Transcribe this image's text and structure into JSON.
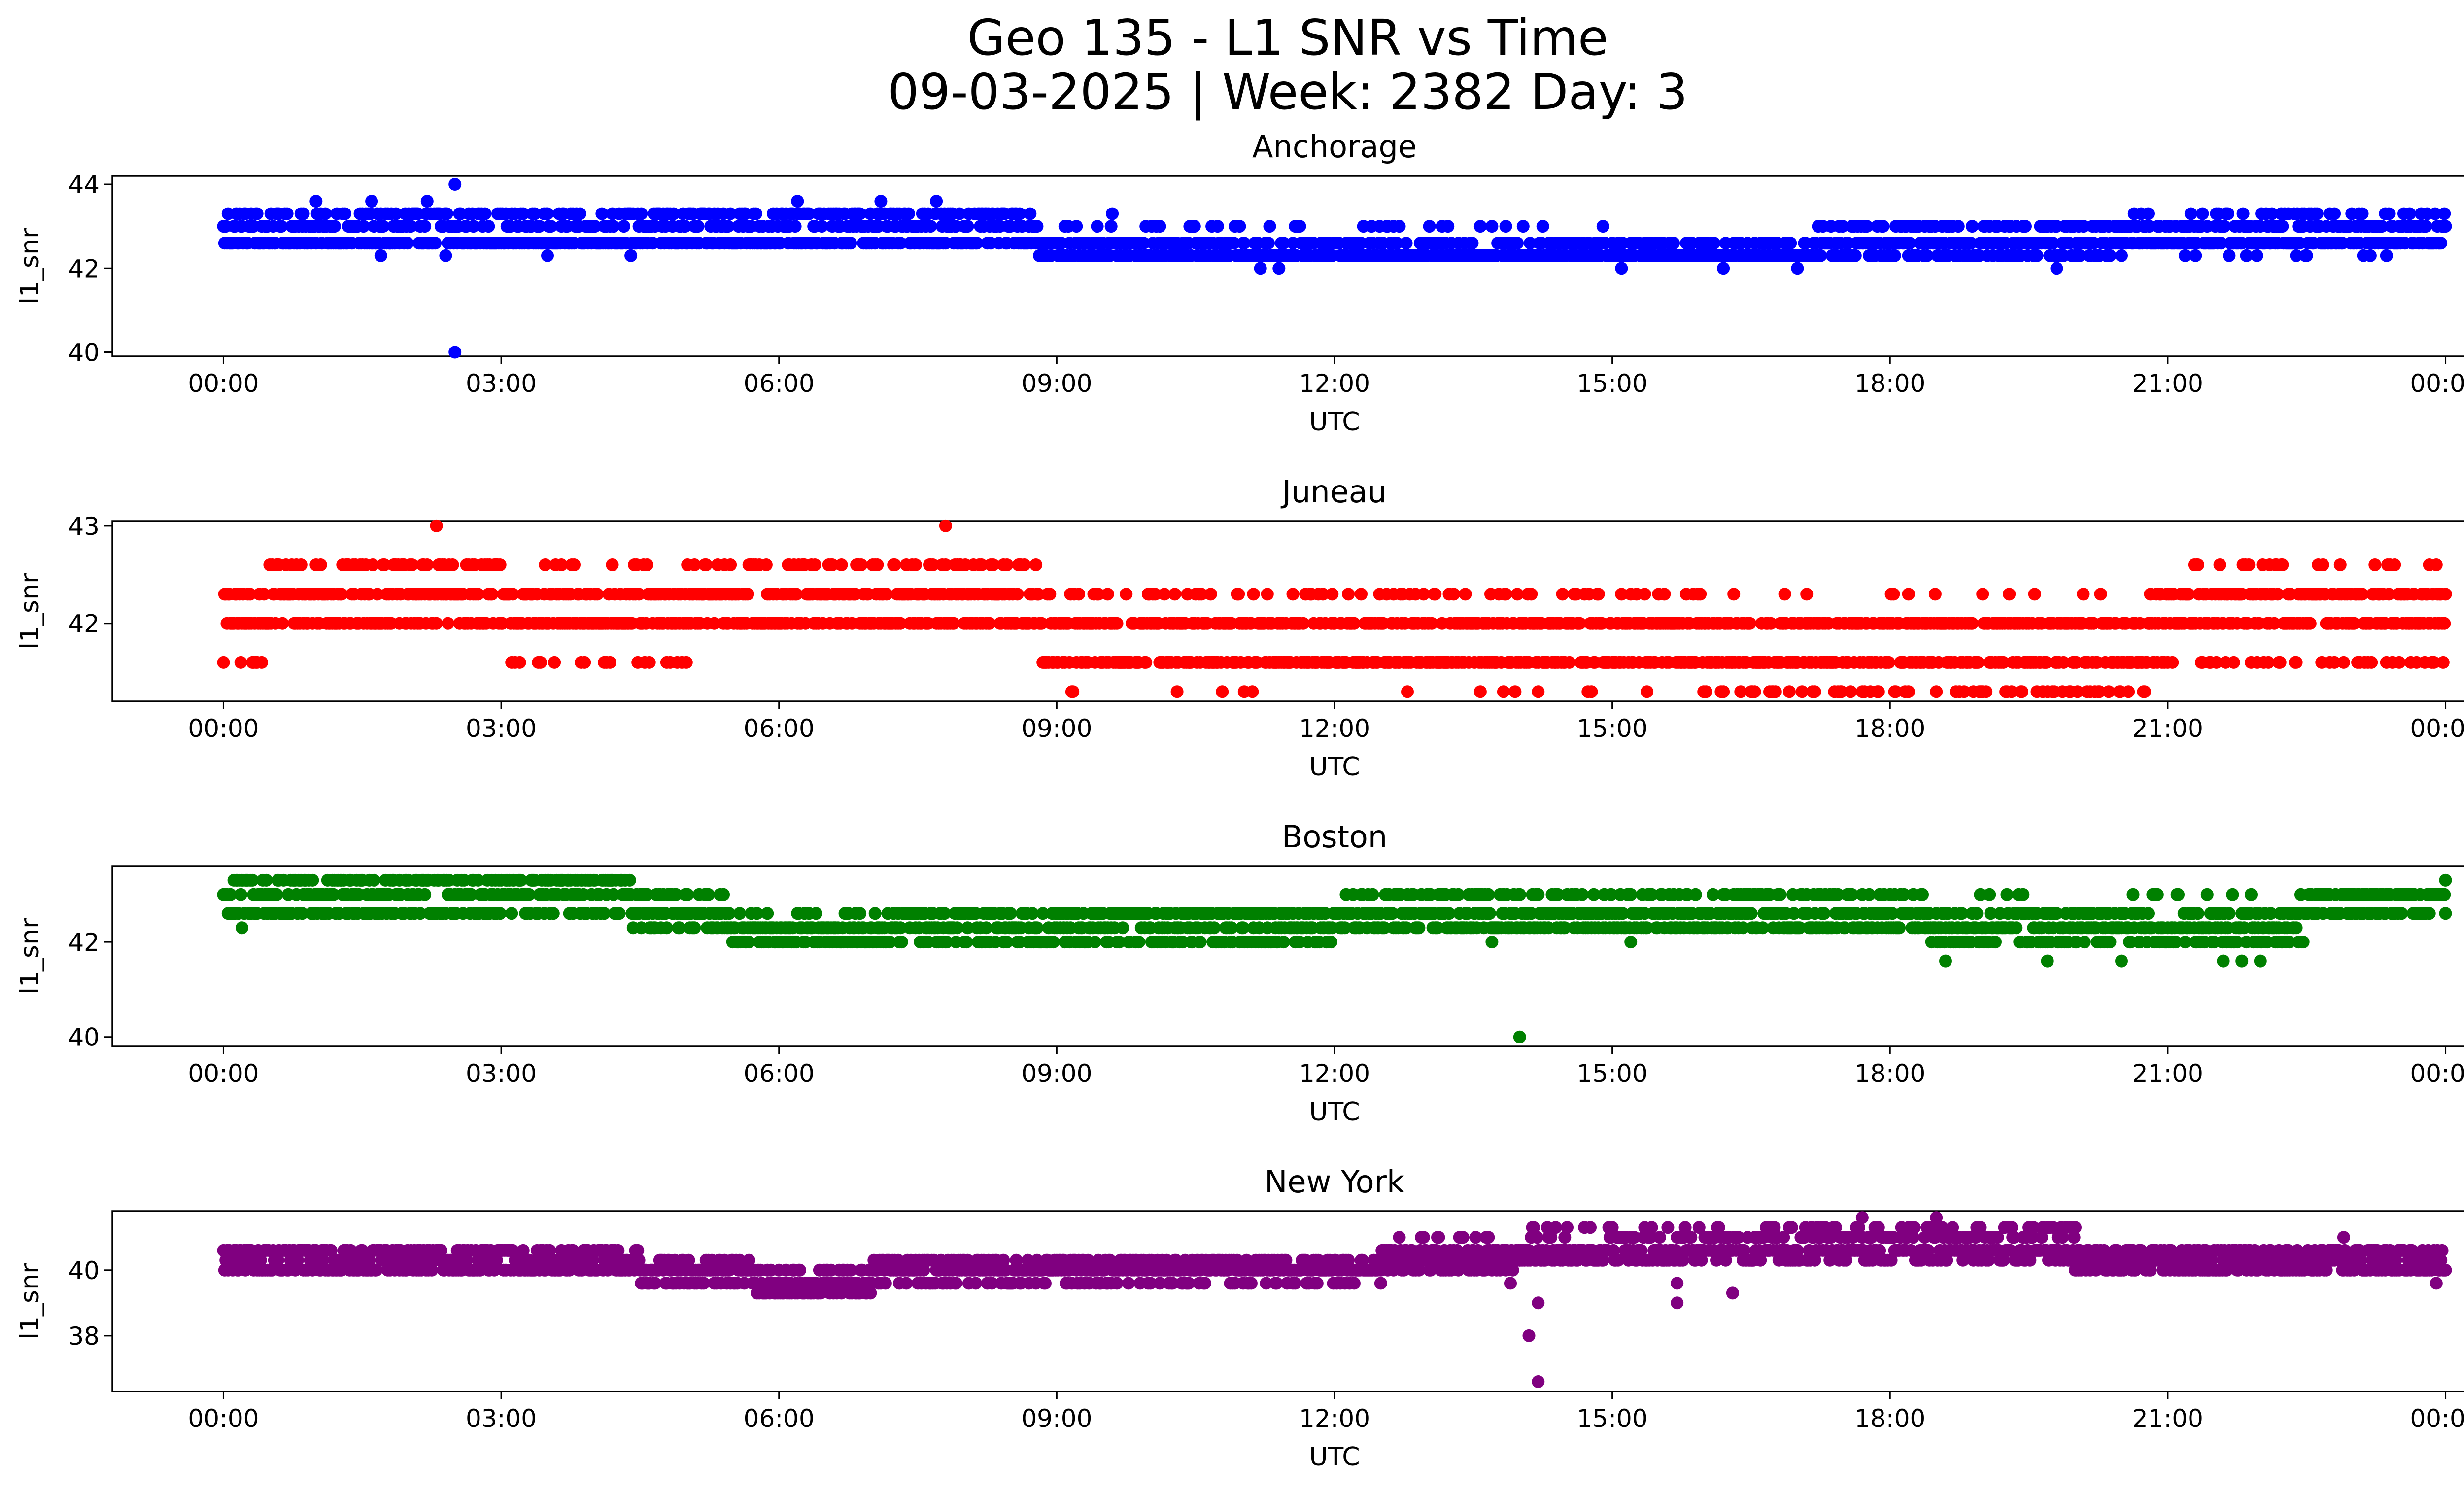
{
  "figure": {
    "title_line1": "Geo 135 - L1 SNR vs Time",
    "title_line2": "09-03-2025 | Week: 2382 Day: 3"
  },
  "chart_data": [
    {
      "type": "scatter",
      "title": "Anchorage",
      "xlabel": "UTC",
      "ylabel": "l1_snr",
      "color": "#0000ff",
      "x_ticks": [
        "00:00",
        "03:00",
        "06:00",
        "09:00",
        "12:00",
        "15:00",
        "18:00",
        "21:00",
        "00:00"
      ],
      "xlim_hours": [
        -1.2,
        25.2
      ],
      "ylim": [
        39.9,
        44.2
      ],
      "y_ticks": [
        40,
        42,
        44
      ],
      "y_tick_labels": [
        "40",
        "42",
        "44"
      ],
      "levels": [
        42.3,
        42.6,
        43.0,
        43.3
      ],
      "outliers": [
        [
          2.5,
          40.0
        ],
        [
          2.5,
          44.0
        ],
        [
          1.7,
          42.3
        ],
        [
          2.4,
          42.3
        ],
        [
          3.5,
          42.3
        ],
        [
          4.4,
          42.3
        ],
        [
          11.2,
          42.0
        ],
        [
          11.4,
          42.0
        ],
        [
          15.1,
          42.0
        ],
        [
          16.2,
          42.0
        ],
        [
          17.0,
          42.0
        ],
        [
          19.8,
          42.0
        ],
        [
          1.0,
          43.6
        ],
        [
          1.6,
          43.6
        ],
        [
          2.2,
          43.6
        ],
        [
          6.2,
          43.6
        ],
        [
          7.1,
          43.6
        ],
        [
          7.7,
          43.6
        ],
        [
          9.6,
          43.3
        ],
        [
          22.3,
          43.3
        ]
      ],
      "segments": [
        {
          "from": 0.0,
          "to": 1.8,
          "level_weights": [
            0.0,
            0.45,
            0.3,
            0.25
          ]
        },
        {
          "from": 1.8,
          "to": 4.5,
          "level_weights": [
            0.0,
            0.45,
            0.3,
            0.25
          ]
        },
        {
          "from": 4.5,
          "to": 8.8,
          "level_weights": [
            0.0,
            0.4,
            0.3,
            0.3
          ]
        },
        {
          "from": 8.8,
          "to": 11.0,
          "level_weights": [
            0.45,
            0.45,
            0.1,
            0.0
          ]
        },
        {
          "from": 11.0,
          "to": 15.0,
          "level_weights": [
            0.6,
            0.3,
            0.1,
            0.0
          ]
        },
        {
          "from": 15.0,
          "to": 17.2,
          "level_weights": [
            0.65,
            0.35,
            0.0,
            0.0
          ]
        },
        {
          "from": 17.2,
          "to": 20.5,
          "level_weights": [
            0.3,
            0.45,
            0.25,
            0.0
          ]
        },
        {
          "from": 20.5,
          "to": 24.0,
          "level_weights": [
            0.05,
            0.45,
            0.35,
            0.15
          ]
        }
      ]
    },
    {
      "type": "scatter",
      "title": "Juneau",
      "xlabel": "UTC",
      "ylabel": "l1_snr",
      "color": "#ff0000",
      "x_ticks": [
        "00:00",
        "03:00",
        "06:00",
        "09:00",
        "12:00",
        "15:00",
        "18:00",
        "21:00",
        "00:00"
      ],
      "xlim_hours": [
        -1.2,
        25.2
      ],
      "ylim": [
        41.2,
        43.05
      ],
      "y_ticks": [
        42,
        43
      ],
      "y_tick_labels": [
        "42",
        "43"
      ],
      "levels": [
        41.3,
        41.6,
        42.0,
        42.3,
        42.6
      ],
      "outliers": [
        [
          2.3,
          43.0
        ],
        [
          7.8,
          43.0
        ],
        [
          0.9,
          42.0
        ],
        [
          7.5,
          42.0
        ],
        [
          5.0,
          41.6
        ],
        [
          3.9,
          41.6
        ],
        [
          14.2,
          41.3
        ],
        [
          10.3,
          41.3
        ],
        [
          17.1,
          42.3
        ],
        [
          18.2,
          42.3
        ],
        [
          19.0,
          42.3
        ],
        [
          22.1,
          42.6
        ]
      ],
      "segments": [
        {
          "from": 0.0,
          "to": 0.5,
          "level_weights": [
            0.0,
            0.25,
            0.4,
            0.35,
            0.0
          ]
        },
        {
          "from": 0.5,
          "to": 3.0,
          "level_weights": [
            0.0,
            0.0,
            0.35,
            0.35,
            0.3
          ]
        },
        {
          "from": 3.0,
          "to": 5.0,
          "level_weights": [
            0.0,
            0.15,
            0.45,
            0.35,
            0.05
          ]
        },
        {
          "from": 5.0,
          "to": 8.8,
          "level_weights": [
            0.0,
            0.0,
            0.4,
            0.4,
            0.2
          ]
        },
        {
          "from": 8.8,
          "to": 16.0,
          "level_weights": [
            0.03,
            0.42,
            0.42,
            0.13,
            0.0
          ]
        },
        {
          "from": 16.0,
          "to": 20.8,
          "level_weights": [
            0.17,
            0.4,
            0.4,
            0.03,
            0.0
          ]
        },
        {
          "from": 20.8,
          "to": 24.0,
          "level_weights": [
            0.0,
            0.15,
            0.4,
            0.35,
            0.1
          ]
        }
      ]
    },
    {
      "type": "scatter",
      "title": "Boston",
      "xlabel": "UTC",
      "ylabel": "l1_snr",
      "color": "#008000",
      "x_ticks": [
        "00:00",
        "03:00",
        "06:00",
        "09:00",
        "12:00",
        "15:00",
        "18:00",
        "21:00",
        "00:00"
      ],
      "xlim_hours": [
        -1.2,
        25.2
      ],
      "ylim": [
        39.8,
        43.6
      ],
      "y_ticks": [
        40,
        42
      ],
      "y_tick_labels": [
        "40",
        "42"
      ],
      "levels": [
        42.0,
        42.3,
        42.6,
        43.0,
        43.3
      ],
      "outliers": [
        [
          14.0,
          40.0
        ],
        [
          0.2,
          42.3
        ],
        [
          18.6,
          41.6
        ],
        [
          19.7,
          41.6
        ],
        [
          20.5,
          41.6
        ],
        [
          21.6,
          41.6
        ],
        [
          21.8,
          41.6
        ],
        [
          22.0,
          41.6
        ],
        [
          24.0,
          43.3
        ],
        [
          13.7,
          42.0
        ],
        [
          15.2,
          42.0
        ]
      ],
      "segments": [
        {
          "from": 0.0,
          "to": 1.4,
          "level_weights": [
            0.0,
            0.0,
            0.35,
            0.35,
            0.3
          ]
        },
        {
          "from": 1.4,
          "to": 4.4,
          "level_weights": [
            0.0,
            0.0,
            0.3,
            0.35,
            0.35
          ]
        },
        {
          "from": 4.4,
          "to": 5.5,
          "level_weights": [
            0.0,
            0.35,
            0.45,
            0.2,
            0.0
          ]
        },
        {
          "from": 5.5,
          "to": 7.3,
          "level_weights": [
            0.4,
            0.45,
            0.15,
            0.0,
            0.0
          ]
        },
        {
          "from": 7.3,
          "to": 12.0,
          "level_weights": [
            0.25,
            0.35,
            0.4,
            0.0,
            0.0
          ]
        },
        {
          "from": 12.0,
          "to": 18.4,
          "level_weights": [
            0.0,
            0.4,
            0.35,
            0.25,
            0.0
          ]
        },
        {
          "from": 18.4,
          "to": 22.5,
          "level_weights": [
            0.25,
            0.35,
            0.35,
            0.05,
            0.0
          ]
        },
        {
          "from": 22.5,
          "to": 24.0,
          "level_weights": [
            0.0,
            0.0,
            0.4,
            0.6,
            0.0
          ]
        }
      ]
    },
    {
      "type": "scatter",
      "title": "New York",
      "xlabel": "UTC",
      "ylabel": "l1_snr",
      "color": "#800080",
      "x_ticks": [
        "00:00",
        "03:00",
        "06:00",
        "09:00",
        "12:00",
        "15:00",
        "18:00",
        "21:00",
        "00:00"
      ],
      "xlim_hours": [
        -1.2,
        25.2
      ],
      "ylim": [
        36.3,
        41.8
      ],
      "y_ticks": [
        38,
        40
      ],
      "y_tick_labels": [
        "38",
        "40"
      ],
      "levels": [
        39.3,
        39.6,
        40.0,
        40.3,
        40.6,
        41.0,
        41.3
      ],
      "outliers": [
        [
          14.1,
          38.0
        ],
        [
          14.2,
          36.6
        ],
        [
          14.2,
          39.0
        ],
        [
          15.7,
          39.0
        ],
        [
          16.3,
          39.3
        ],
        [
          18.5,
          41.6
        ],
        [
          17.7,
          41.6
        ],
        [
          22.9,
          41.0
        ],
        [
          23.9,
          39.6
        ],
        [
          13.9,
          39.6
        ],
        [
          15.7,
          39.6
        ]
      ],
      "segments": [
        {
          "from": 0.0,
          "to": 4.5,
          "level_weights": [
            0.0,
            0.0,
            0.4,
            0.3,
            0.3,
            0.0,
            0.0
          ]
        },
        {
          "from": 4.5,
          "to": 5.7,
          "level_weights": [
            0.0,
            0.4,
            0.4,
            0.2,
            0.0,
            0.0,
            0.0
          ]
        },
        {
          "from": 5.7,
          "to": 7.0,
          "level_weights": [
            0.35,
            0.4,
            0.25,
            0.0,
            0.0,
            0.0,
            0.0
          ]
        },
        {
          "from": 7.0,
          "to": 12.5,
          "level_weights": [
            0.0,
            0.2,
            0.5,
            0.3,
            0.0,
            0.0,
            0.0
          ]
        },
        {
          "from": 12.5,
          "to": 14.0,
          "level_weights": [
            0.0,
            0.0,
            0.2,
            0.35,
            0.35,
            0.1,
            0.0
          ]
        },
        {
          "from": 14.0,
          "to": 16.7,
          "level_weights": [
            0.0,
            0.0,
            0.0,
            0.3,
            0.4,
            0.2,
            0.1
          ]
        },
        {
          "from": 16.7,
          "to": 20.0,
          "level_weights": [
            0.0,
            0.0,
            0.0,
            0.2,
            0.35,
            0.3,
            0.15
          ]
        },
        {
          "from": 20.0,
          "to": 24.0,
          "level_weights": [
            0.0,
            0.0,
            0.4,
            0.35,
            0.25,
            0.0,
            0.0
          ]
        }
      ]
    }
  ]
}
